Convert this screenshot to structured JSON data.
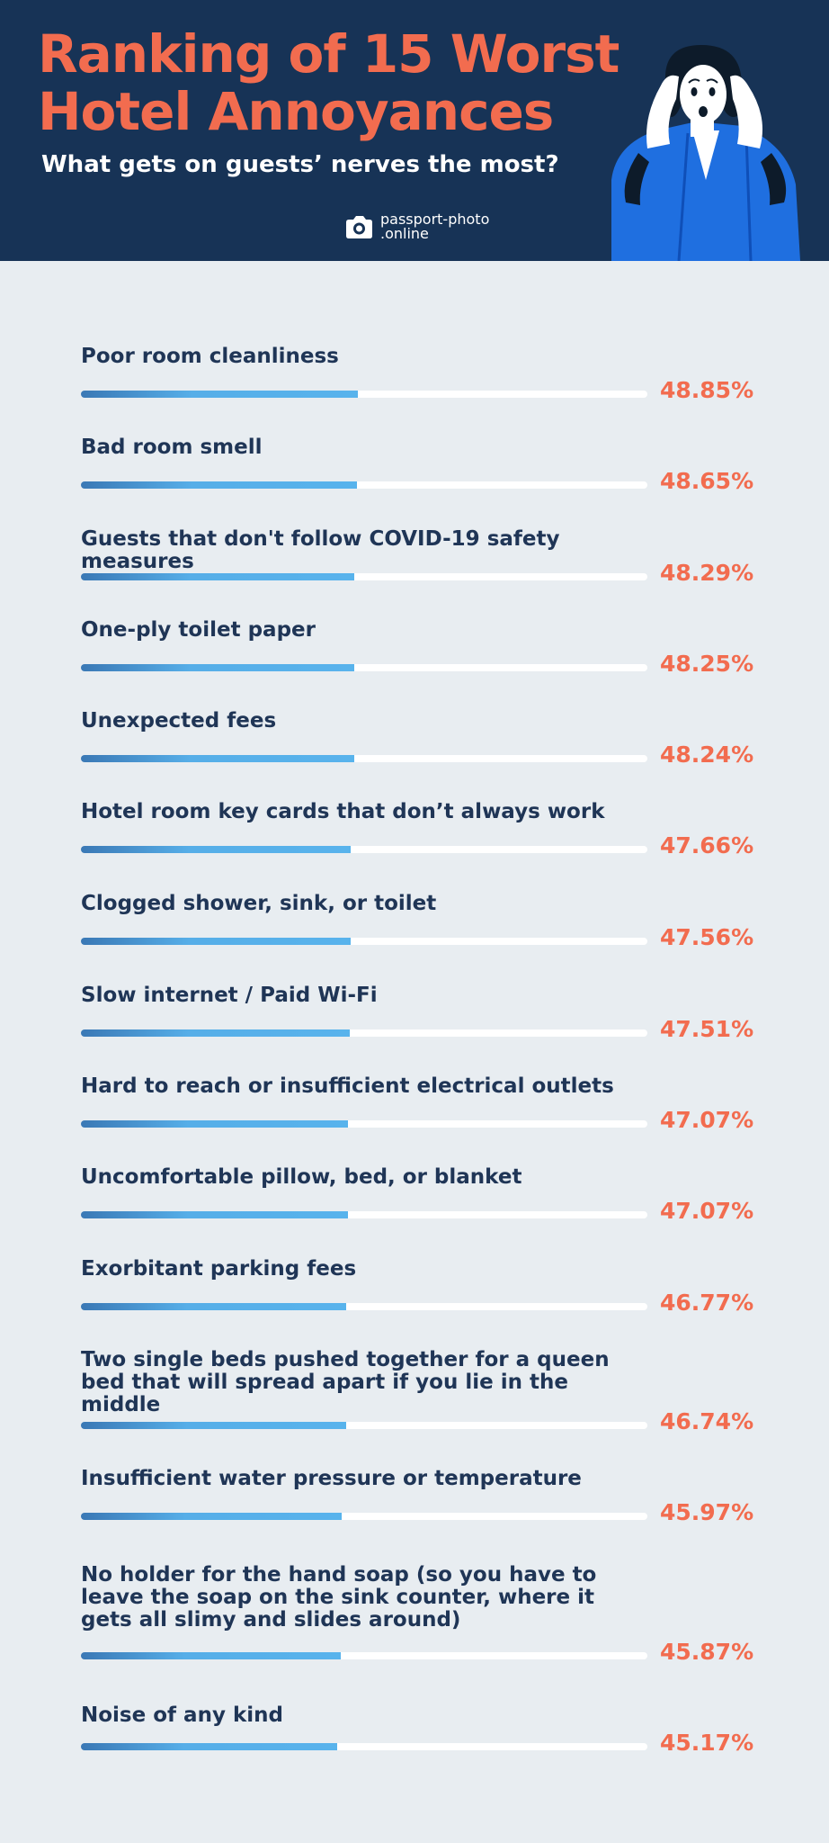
{
  "header": {
    "title": "Ranking of 15 Worst\nHotel Annoyances",
    "subtitle": "What gets on guests’ nerves the most?",
    "brand_line1": "passport-photo",
    "brand_line2": ".online",
    "colors": {
      "background": "#173356",
      "title": "#f26c4f",
      "bar": "#56aee8",
      "value": "#f26c4f"
    }
  },
  "chart_data": {
    "type": "bar",
    "orientation": "horizontal",
    "unit": "%",
    "items": [
      {
        "label": "Poor room cleanliness",
        "value": 48.85,
        "value_label": "48.85%"
      },
      {
        "label": "Bad room smell",
        "value": 48.65,
        "value_label": "48.65%"
      },
      {
        "label": "Guests that don't follow COVID-19 safety measures",
        "value": 48.29,
        "value_label": "48.29%"
      },
      {
        "label": "One-ply toilet paper",
        "value": 48.25,
        "value_label": "48.25%"
      },
      {
        "label": "Unexpected fees",
        "value": 48.24,
        "value_label": "48.24%"
      },
      {
        "label": "Hotel room key cards that don’t always work",
        "value": 47.66,
        "value_label": "47.66%"
      },
      {
        "label": "Clogged shower, sink, or toilet",
        "value": 47.56,
        "value_label": "47.56%"
      },
      {
        "label": "Slow internet / Paid Wi-Fi",
        "value": 47.51,
        "value_label": "47.51%"
      },
      {
        "label": "Hard to reach or insufficient electrical outlets",
        "value": 47.07,
        "value_label": "47.07%"
      },
      {
        "label": "Uncomfortable pillow, bed, or blanket",
        "value": 47.07,
        "value_label": "47.07%"
      },
      {
        "label": "Exorbitant parking fees",
        "value": 46.77,
        "value_label": "46.77%"
      },
      {
        "label": "Two single beds pushed together for a queen bed that will spread apart if you lie in the middle",
        "value": 46.74,
        "value_label": "46.74%"
      },
      {
        "label": "Insufficient water pressure or temperature",
        "value": 45.97,
        "value_label": "45.97%"
      },
      {
        "label": "No holder for the hand soap (so you have to leave the soap on the sink counter, where it gets all slimy and slides around)",
        "value": 45.87,
        "value_label": "45.87%"
      },
      {
        "label": "Noise of any kind",
        "value": 45.17,
        "value_label": "45.17%"
      }
    ],
    "xlim": [
      0,
      100
    ],
    "grid": false,
    "legend": "none"
  }
}
